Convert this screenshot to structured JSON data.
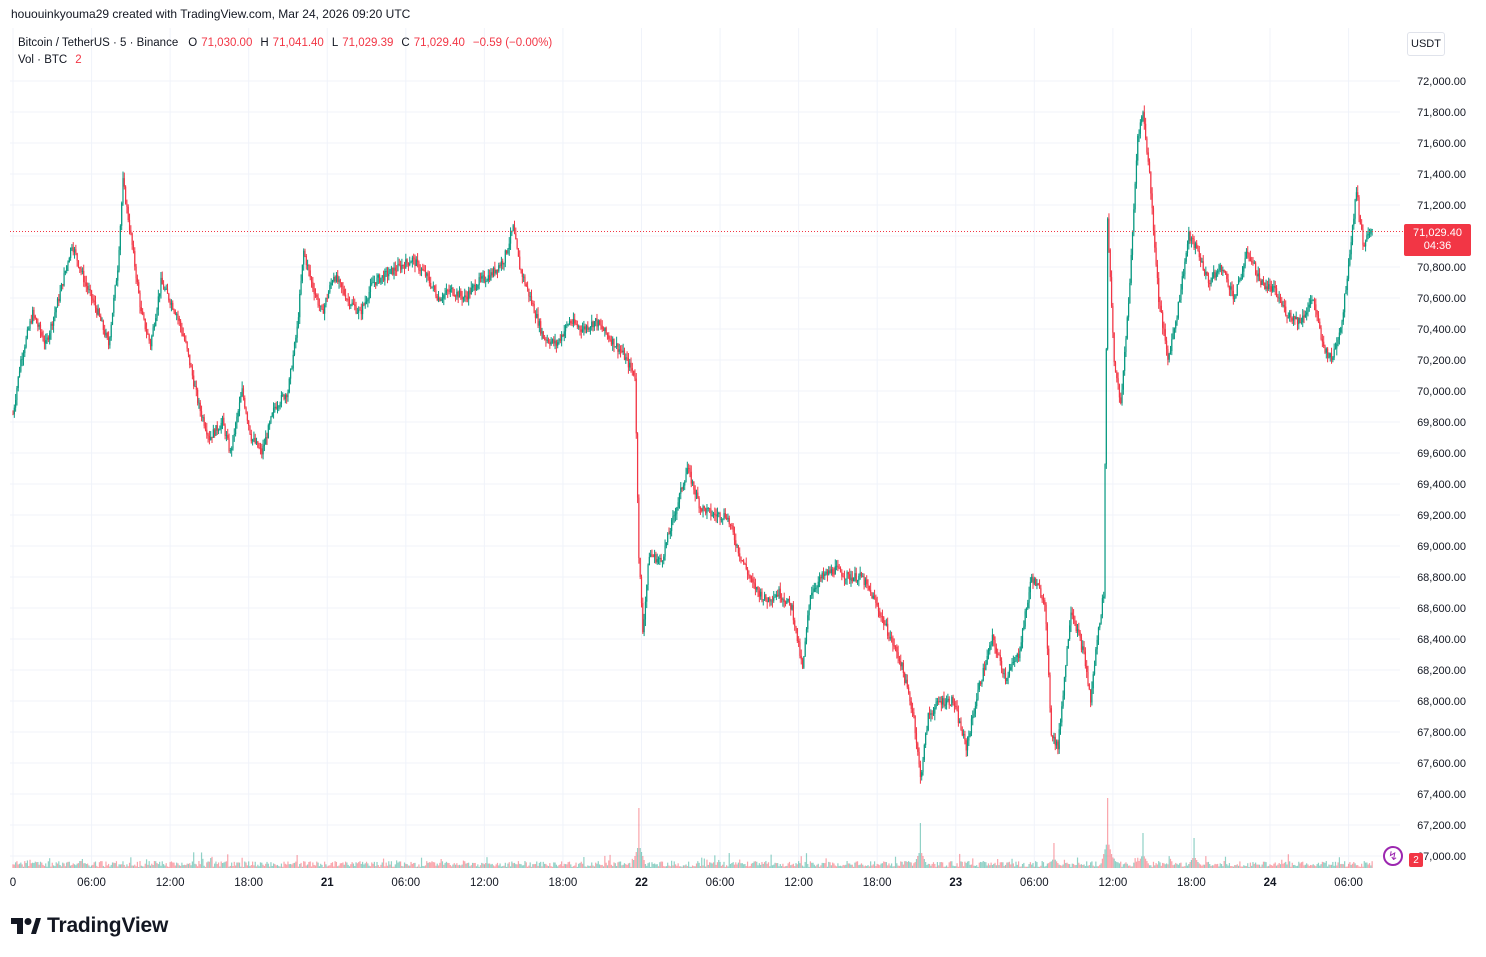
{
  "header": {
    "created_by": "hououinkyouma29 created with TradingView.com, Mar 24, 2026 09:20 UTC"
  },
  "legend": {
    "symbol": "Bitcoin / TetherUS · 5 · Binance",
    "open_label": "O",
    "open": "71,030.00",
    "high_label": "H",
    "high": "71,041.40",
    "low_label": "L",
    "low": "71,029.39",
    "close_label": "C",
    "close": "71,029.40",
    "change": "−0.59 (−0.00%)",
    "volume_label": "Vol · BTC",
    "volume_value": "2"
  },
  "currency": "USDT",
  "last_price": {
    "price": "71,029.40",
    "countdown": "04:36"
  },
  "colors": {
    "up": "#089981",
    "down": "#f23645",
    "grid": "#f0f3fa",
    "axis_text": "#131722",
    "price_line": "#f23645"
  },
  "footer": {
    "logo_text": "TradingView"
  },
  "badges": {
    "notification_count": "2"
  },
  "chart_data": {
    "type": "candlestick",
    "title": "Bitcoin / TetherUS · 5 · Binance",
    "interval": "5 min",
    "ylim": [
      66900,
      72250
    ],
    "y_ticks": [
      67000,
      67200,
      67400,
      67600,
      67800,
      68000,
      68200,
      68400,
      68600,
      68800,
      69000,
      69200,
      69400,
      69600,
      69800,
      70000,
      70200,
      70400,
      70600,
      70800,
      71000,
      71200,
      71400,
      71600,
      71800,
      72000
    ],
    "y_tick_labels": [
      "67,000.00",
      "67,200.00",
      "67,400.00",
      "67,600.00",
      "67,800.00",
      "68,000.00",
      "68,200.00",
      "68,400.00",
      "68,600.00",
      "68,800.00",
      "69,000.00",
      "69,200.00",
      "69,400.00",
      "69,600.00",
      "69,800.00",
      "70,000.00",
      "70,200.00",
      "70,400.00",
      "70,600.00",
      "70,800.00",
      "71,000.00",
      "71,200.00",
      "71,400.00",
      "71,600.00",
      "71,800.00",
      "72,000.00"
    ],
    "x_hours": [
      0,
      6,
      12,
      18,
      24,
      30,
      36,
      42,
      48,
      54,
      60,
      66,
      72,
      78,
      84,
      90,
      96,
      102
    ],
    "x_tick_labels": [
      "0",
      "06:00",
      "12:00",
      "18:00",
      "21",
      "06:00",
      "12:00",
      "18:00",
      "22",
      "06:00",
      "12:00",
      "18:00",
      "23",
      "06:00",
      "12:00",
      "18:00",
      "24",
      "06:00"
    ],
    "x_range_hours": [
      0,
      106
    ],
    "price_path": [
      [
        0,
        69850
      ],
      [
        0.6,
        70200
      ],
      [
        1.5,
        70500
      ],
      [
        2.5,
        70300
      ],
      [
        3.5,
        70600
      ],
      [
        4.5,
        70950
      ],
      [
        5.5,
        70700
      ],
      [
        6.5,
        70500
      ],
      [
        7.3,
        70300
      ],
      [
        8,
        70800
      ],
      [
        8.4,
        71350
      ],
      [
        9,
        71000
      ],
      [
        9.8,
        70500
      ],
      [
        10.5,
        70300
      ],
      [
        11.3,
        70700
      ],
      [
        12.5,
        70500
      ],
      [
        13.2,
        70300
      ],
      [
        14.2,
        69900
      ],
      [
        15,
        69700
      ],
      [
        16,
        69800
      ],
      [
        16.6,
        69600
      ],
      [
        17.5,
        70000
      ],
      [
        18.2,
        69700
      ],
      [
        19,
        69600
      ],
      [
        20,
        69900
      ],
      [
        21,
        70000
      ],
      [
        21.7,
        70400
      ],
      [
        22.2,
        70900
      ],
      [
        22.8,
        70700
      ],
      [
        23.6,
        70500
      ],
      [
        24.5,
        70750
      ],
      [
        25.5,
        70600
      ],
      [
        26.5,
        70500
      ],
      [
        27.5,
        70700
      ],
      [
        28.5,
        70750
      ],
      [
        29.5,
        70800
      ],
      [
        30.5,
        70850
      ],
      [
        31.5,
        70750
      ],
      [
        32.5,
        70600
      ],
      [
        33.5,
        70650
      ],
      [
        34.5,
        70600
      ],
      [
        35.5,
        70700
      ],
      [
        36.5,
        70750
      ],
      [
        37.5,
        70850
      ],
      [
        38.2,
        71050
      ],
      [
        38.7,
        70800
      ],
      [
        39.5,
        70600
      ],
      [
        40.5,
        70350
      ],
      [
        41.5,
        70300
      ],
      [
        42.5,
        70450
      ],
      [
        43.5,
        70400
      ],
      [
        44.5,
        70450
      ],
      [
        45.5,
        70350
      ],
      [
        46.5,
        70250
      ],
      [
        47.5,
        70100
      ],
      [
        47.8,
        68950
      ],
      [
        48.1,
        68450
      ],
      [
        48.6,
        68950
      ],
      [
        49.5,
        68900
      ],
      [
        50.5,
        69200
      ],
      [
        51.5,
        69500
      ],
      [
        52.5,
        69250
      ],
      [
        53.5,
        69200
      ],
      [
        54.5,
        69200
      ],
      [
        55.5,
        68950
      ],
      [
        56.5,
        68750
      ],
      [
        57.5,
        68650
      ],
      [
        58.5,
        68700
      ],
      [
        59.5,
        68600
      ],
      [
        60.3,
        68200
      ],
      [
        60.9,
        68700
      ],
      [
        61.8,
        68800
      ],
      [
        62.8,
        68850
      ],
      [
        63.8,
        68800
      ],
      [
        64.8,
        68800
      ],
      [
        65.8,
        68650
      ],
      [
        66.8,
        68450
      ],
      [
        67.8,
        68250
      ],
      [
        68.8,
        67900
      ],
      [
        69.3,
        67500
      ],
      [
        69.9,
        67900
      ],
      [
        70.8,
        68000
      ],
      [
        71.8,
        68000
      ],
      [
        72.8,
        67700
      ],
      [
        73.8,
        68100
      ],
      [
        74.8,
        68400
      ],
      [
        75.8,
        68150
      ],
      [
        76.8,
        68300
      ],
      [
        77.8,
        68800
      ],
      [
        78.8,
        68650
      ],
      [
        79.3,
        67800
      ],
      [
        79.8,
        67700
      ],
      [
        80.8,
        68600
      ],
      [
        81.8,
        68300
      ],
      [
        82.3,
        68000
      ],
      [
        82.8,
        68400
      ],
      [
        83.3,
        68700
      ],
      [
        83.6,
        71100
      ],
      [
        84.1,
        70200
      ],
      [
        84.6,
        69900
      ],
      [
        85.3,
        70700
      ],
      [
        85.9,
        71650
      ],
      [
        86.3,
        71800
      ],
      [
        86.8,
        71400
      ],
      [
        87.5,
        70600
      ],
      [
        88.2,
        70200
      ],
      [
        88.9,
        70500
      ],
      [
        89.8,
        71000
      ],
      [
        90.5,
        70900
      ],
      [
        91.3,
        70700
      ],
      [
        92.3,
        70800
      ],
      [
        93.3,
        70600
      ],
      [
        94.3,
        70900
      ],
      [
        95.3,
        70700
      ],
      [
        96.3,
        70650
      ],
      [
        97.3,
        70500
      ],
      [
        98.3,
        70450
      ],
      [
        99.3,
        70600
      ],
      [
        100,
        70300
      ],
      [
        100.7,
        70200
      ],
      [
        101.5,
        70450
      ],
      [
        102.1,
        70900
      ],
      [
        102.6,
        71300
      ],
      [
        103.1,
        70950
      ],
      [
        103.8,
        71029.4
      ]
    ],
    "volume_spikes": [
      [
        47.8,
        12
      ],
      [
        69.3,
        9
      ],
      [
        83.6,
        14
      ],
      [
        86.3,
        7
      ],
      [
        90.2,
        6
      ],
      [
        79.5,
        5
      ]
    ]
  }
}
